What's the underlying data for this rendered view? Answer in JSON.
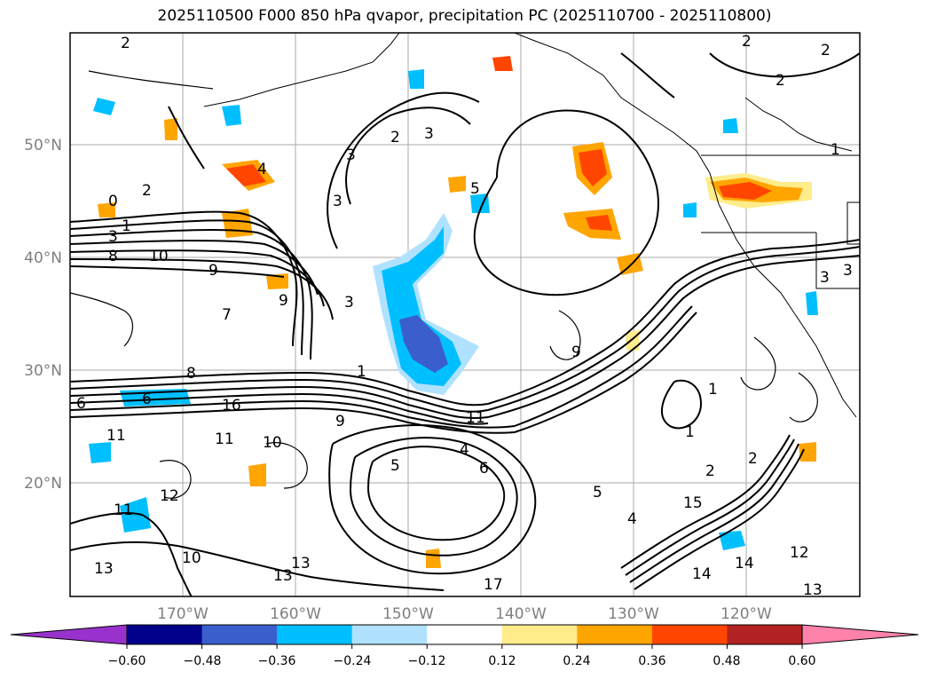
{
  "title": "2025110500 F000 850 hPa qvapor, precipitation PC (2025110700 - 2025110800)",
  "lat_labels": [
    "50°N",
    "40°N",
    "30°N",
    "20°N"
  ],
  "lon_labels": [
    "170°W",
    "160°W",
    "150°W",
    "140°W",
    "130°W",
    "120°W"
  ],
  "colorbar": {
    "ticks": [
      "−0.60",
      "−0.48",
      "−0.36",
      "−0.24",
      "−0.12",
      "0.12",
      "0.24",
      "0.36",
      "0.48",
      "0.60"
    ],
    "colors": [
      "#9932cc",
      "#00008b",
      "#3a5fcd",
      "#00bfff",
      "#b0e2ff",
      "#ffffff",
      "#ffec8b",
      "#ffa500",
      "#ff4500",
      "#b22222",
      "#ff82ab"
    ]
  },
  "contour_labels": [
    "2",
    "2",
    "3",
    "2",
    "3",
    "2",
    "3",
    "4",
    "5",
    "0",
    "1",
    "3",
    "8",
    "10",
    "9",
    "9",
    "7",
    "8",
    "6",
    "6",
    "1",
    "9",
    "11",
    "11",
    "10",
    "11",
    "4",
    "5",
    "6",
    "12",
    "11",
    "13",
    "10",
    "13",
    "17",
    "14",
    "13",
    "2",
    "2",
    "1",
    "1",
    "3",
    "5",
    "4",
    "2",
    "3",
    "1",
    "9",
    "14",
    "13",
    "15",
    "16",
    "12",
    "2",
    "3"
  ]
}
